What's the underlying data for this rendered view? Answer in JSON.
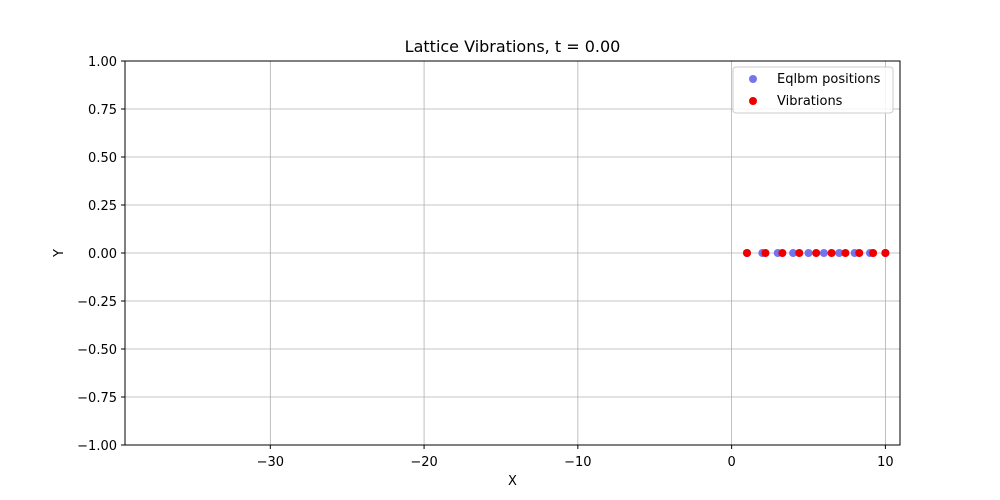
{
  "chart_data": {
    "type": "scatter",
    "title": "Lattice Vibrations, t = 0.00",
    "xlabel": "X",
    "ylabel": "Y",
    "xlim": [
      -39.45,
      10.95
    ],
    "ylim": [
      -1.0,
      1.0
    ],
    "xticks": [
      -30,
      -20,
      -10,
      0,
      10
    ],
    "xtick_labels": [
      "−30",
      "−20",
      "−10",
      "0",
      "10"
    ],
    "yticks": [
      -1.0,
      -0.75,
      -0.5,
      -0.25,
      0.0,
      0.25,
      0.5,
      0.75,
      1.0
    ],
    "ytick_labels": [
      "−1.00",
      "−0.75",
      "−0.50",
      "−0.25",
      "0.00",
      "0.25",
      "0.50",
      "0.75",
      "1.00"
    ],
    "grid": true,
    "legend_position": "top-right",
    "series": [
      {
        "name": "Eqlbm positions",
        "color": "#6666ee",
        "x": [
          1,
          2,
          3,
          4,
          5,
          6,
          7,
          8,
          9,
          10
        ],
        "y": [
          0,
          0,
          0,
          0,
          0,
          0,
          0,
          0,
          0,
          0
        ]
      },
      {
        "name": "Vibrations",
        "color": "#ee0000",
        "x": [
          1.0,
          2.2,
          3.3,
          4.4,
          5.5,
          6.5,
          7.4,
          8.3,
          9.2,
          10.0
        ],
        "y": [
          0,
          0,
          0,
          0,
          0,
          0,
          0,
          0,
          0,
          0
        ]
      }
    ]
  }
}
